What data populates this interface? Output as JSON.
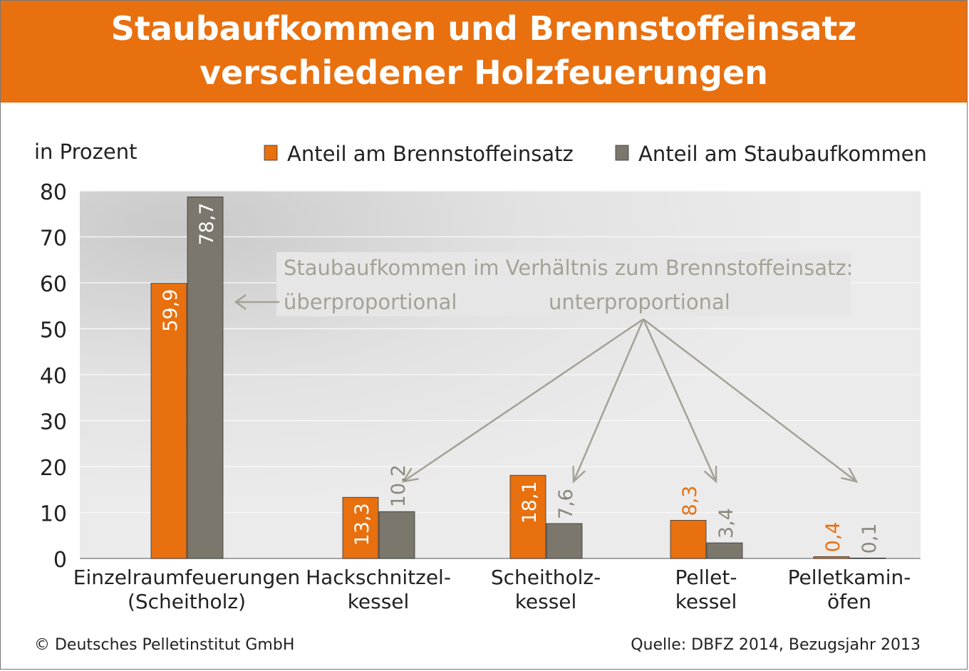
{
  "title_line_1": "Staubaufkommen und Brennstoffeinsatz",
  "title_line_2": "verschiedener Holzfeuerungen",
  "colors": {
    "brand_orange": "#e8700f",
    "series_brennstoff": "#e8700f",
    "series_staub": "#7b776c",
    "annotation_gray": "#a4a196",
    "plot_bg": "#e6e6e6"
  },
  "chart_data": {
    "type": "bar",
    "ylabel": "in Prozent",
    "ylim": [
      0,
      80
    ],
    "yticks": [
      "0",
      "10",
      "20",
      "30",
      "40",
      "50",
      "60",
      "70",
      "80"
    ],
    "grid": true,
    "legend_position": "top-right",
    "categories": [
      [
        "Einzelraumfeuerungen",
        "(Scheitholz)"
      ],
      [
        "Hackschnitzel-",
        "kessel"
      ],
      [
        "Scheitholz-",
        "kessel"
      ],
      [
        "Pellet-",
        "kessel"
      ],
      [
        "Pelletkamin-",
        "öfen"
      ]
    ],
    "series": [
      {
        "name": "Anteil am Brennstoffeinsatz",
        "values": [
          59.9,
          13.3,
          18.1,
          8.3,
          0.4
        ],
        "labels": [
          "59,9",
          "13,3",
          "18,1",
          "8,3",
          "0,4"
        ]
      },
      {
        "name": "Anteil am Staubaufkommen",
        "values": [
          78.7,
          10.2,
          7.6,
          3.4,
          0.1
        ],
        "labels": [
          "78,7",
          "10,2",
          "7,6",
          "3,4",
          "0,1"
        ]
      }
    ],
    "annotations": {
      "heading": "Staubaufkommen im Verhältnis zum Brennstoffeinsatz:",
      "over": "überproportional",
      "under": "unterproportional"
    }
  },
  "footer": {
    "copyright": "© Deutsches Pelletinstitut GmbH",
    "source": "Quelle: DBFZ 2014, Bezugsjahr 2013"
  }
}
